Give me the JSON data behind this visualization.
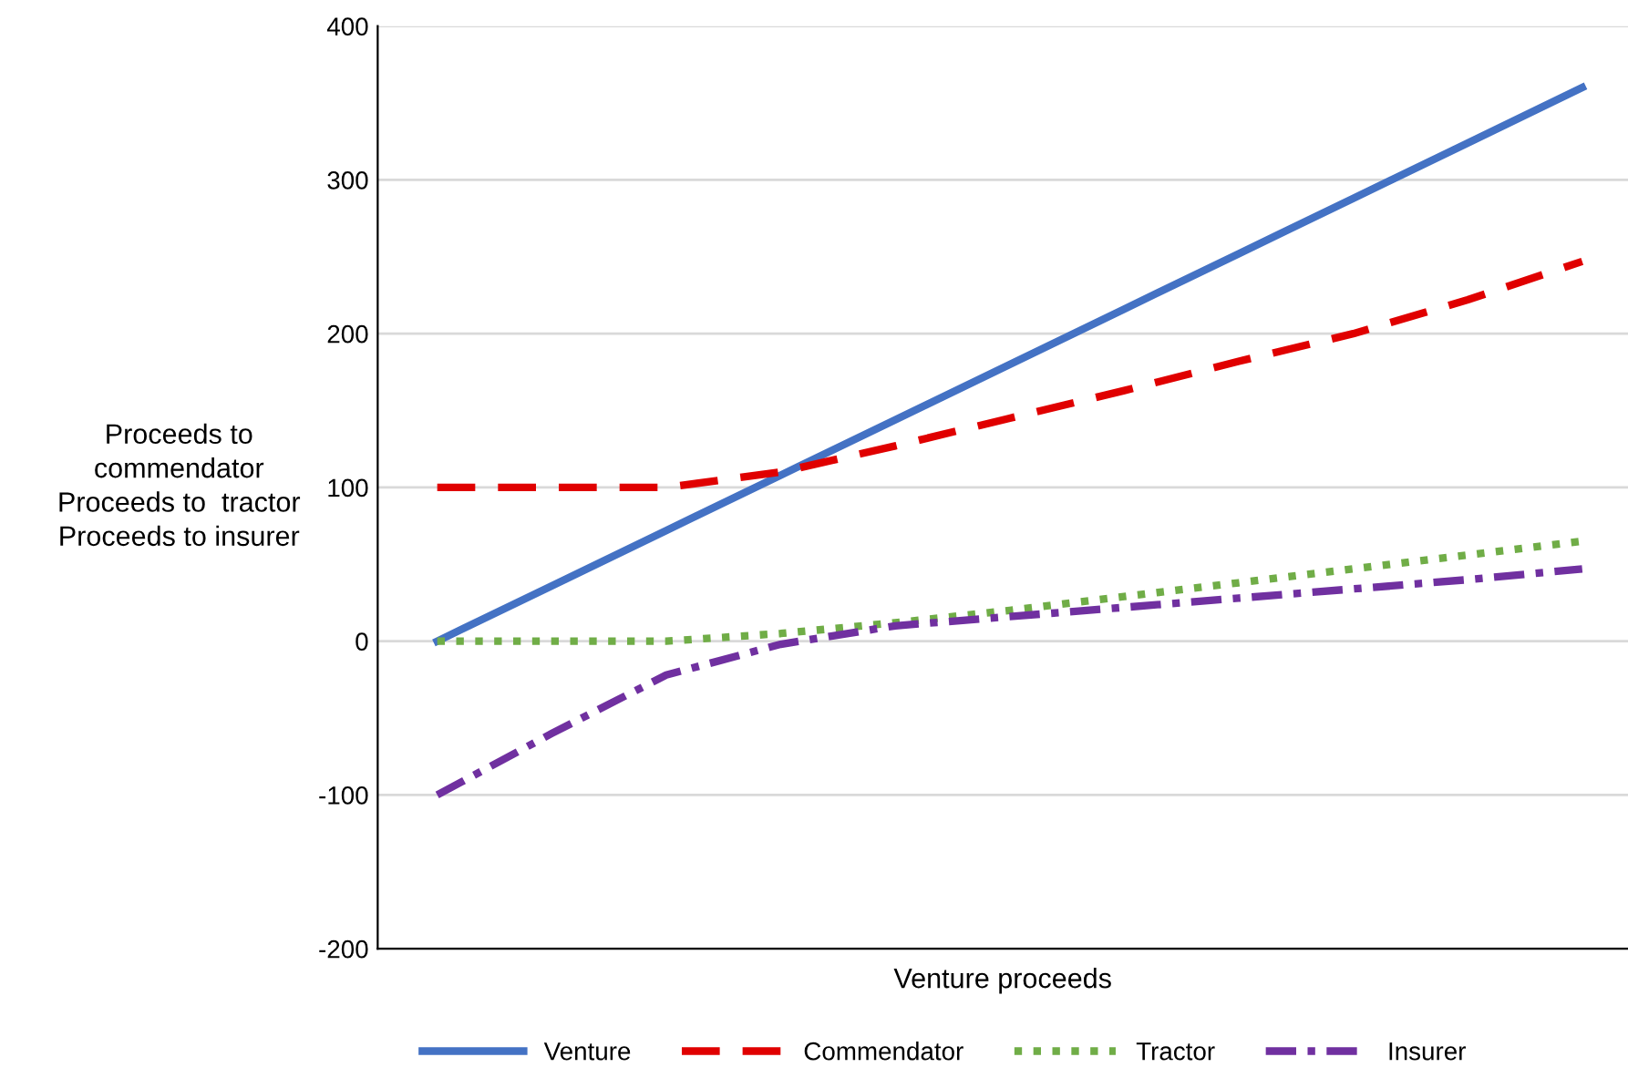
{
  "chart_data": {
    "type": "line",
    "xlabel": "Venture proceeds",
    "ylabel": "Proceeds to\ncommendator\nProceeds to  tractor\nProceeds to insurer",
    "categories": [
      null,
      null,
      null,
      null,
      null,
      null,
      null,
      null,
      null,
      null,
      null
    ],
    "series": [
      {
        "name": "Venture",
        "color": "#4472c4",
        "line_style": "solid",
        "values": [
          0,
          36,
          72,
          108,
          144,
          180,
          216,
          252,
          288,
          324,
          360
        ]
      },
      {
        "name": "Commendator",
        "color": "#e00000",
        "line_style": "dashed",
        "values": [
          100,
          100,
          100,
          110,
          127,
          145,
          163,
          182,
          200,
          222,
          247
        ]
      },
      {
        "name": "Tractor",
        "color": "#70ad47",
        "line_style": "dotted",
        "values": [
          0,
          0,
          0,
          5,
          12,
          20,
          29,
          38,
          47,
          56,
          65
        ]
      },
      {
        "name": "Insurer",
        "color": "#7030a0",
        "line_style": "dashdot",
        "values": [
          -100,
          -60,
          -22,
          -2,
          10,
          16,
          22,
          28,
          34,
          40,
          47
        ]
      }
    ],
    "ylim": [
      -200,
      400
    ],
    "yticks": [
      -200,
      -100,
      0,
      100,
      200,
      300,
      400
    ],
    "grid": "y",
    "legend": "bottom",
    "marker": "none"
  }
}
